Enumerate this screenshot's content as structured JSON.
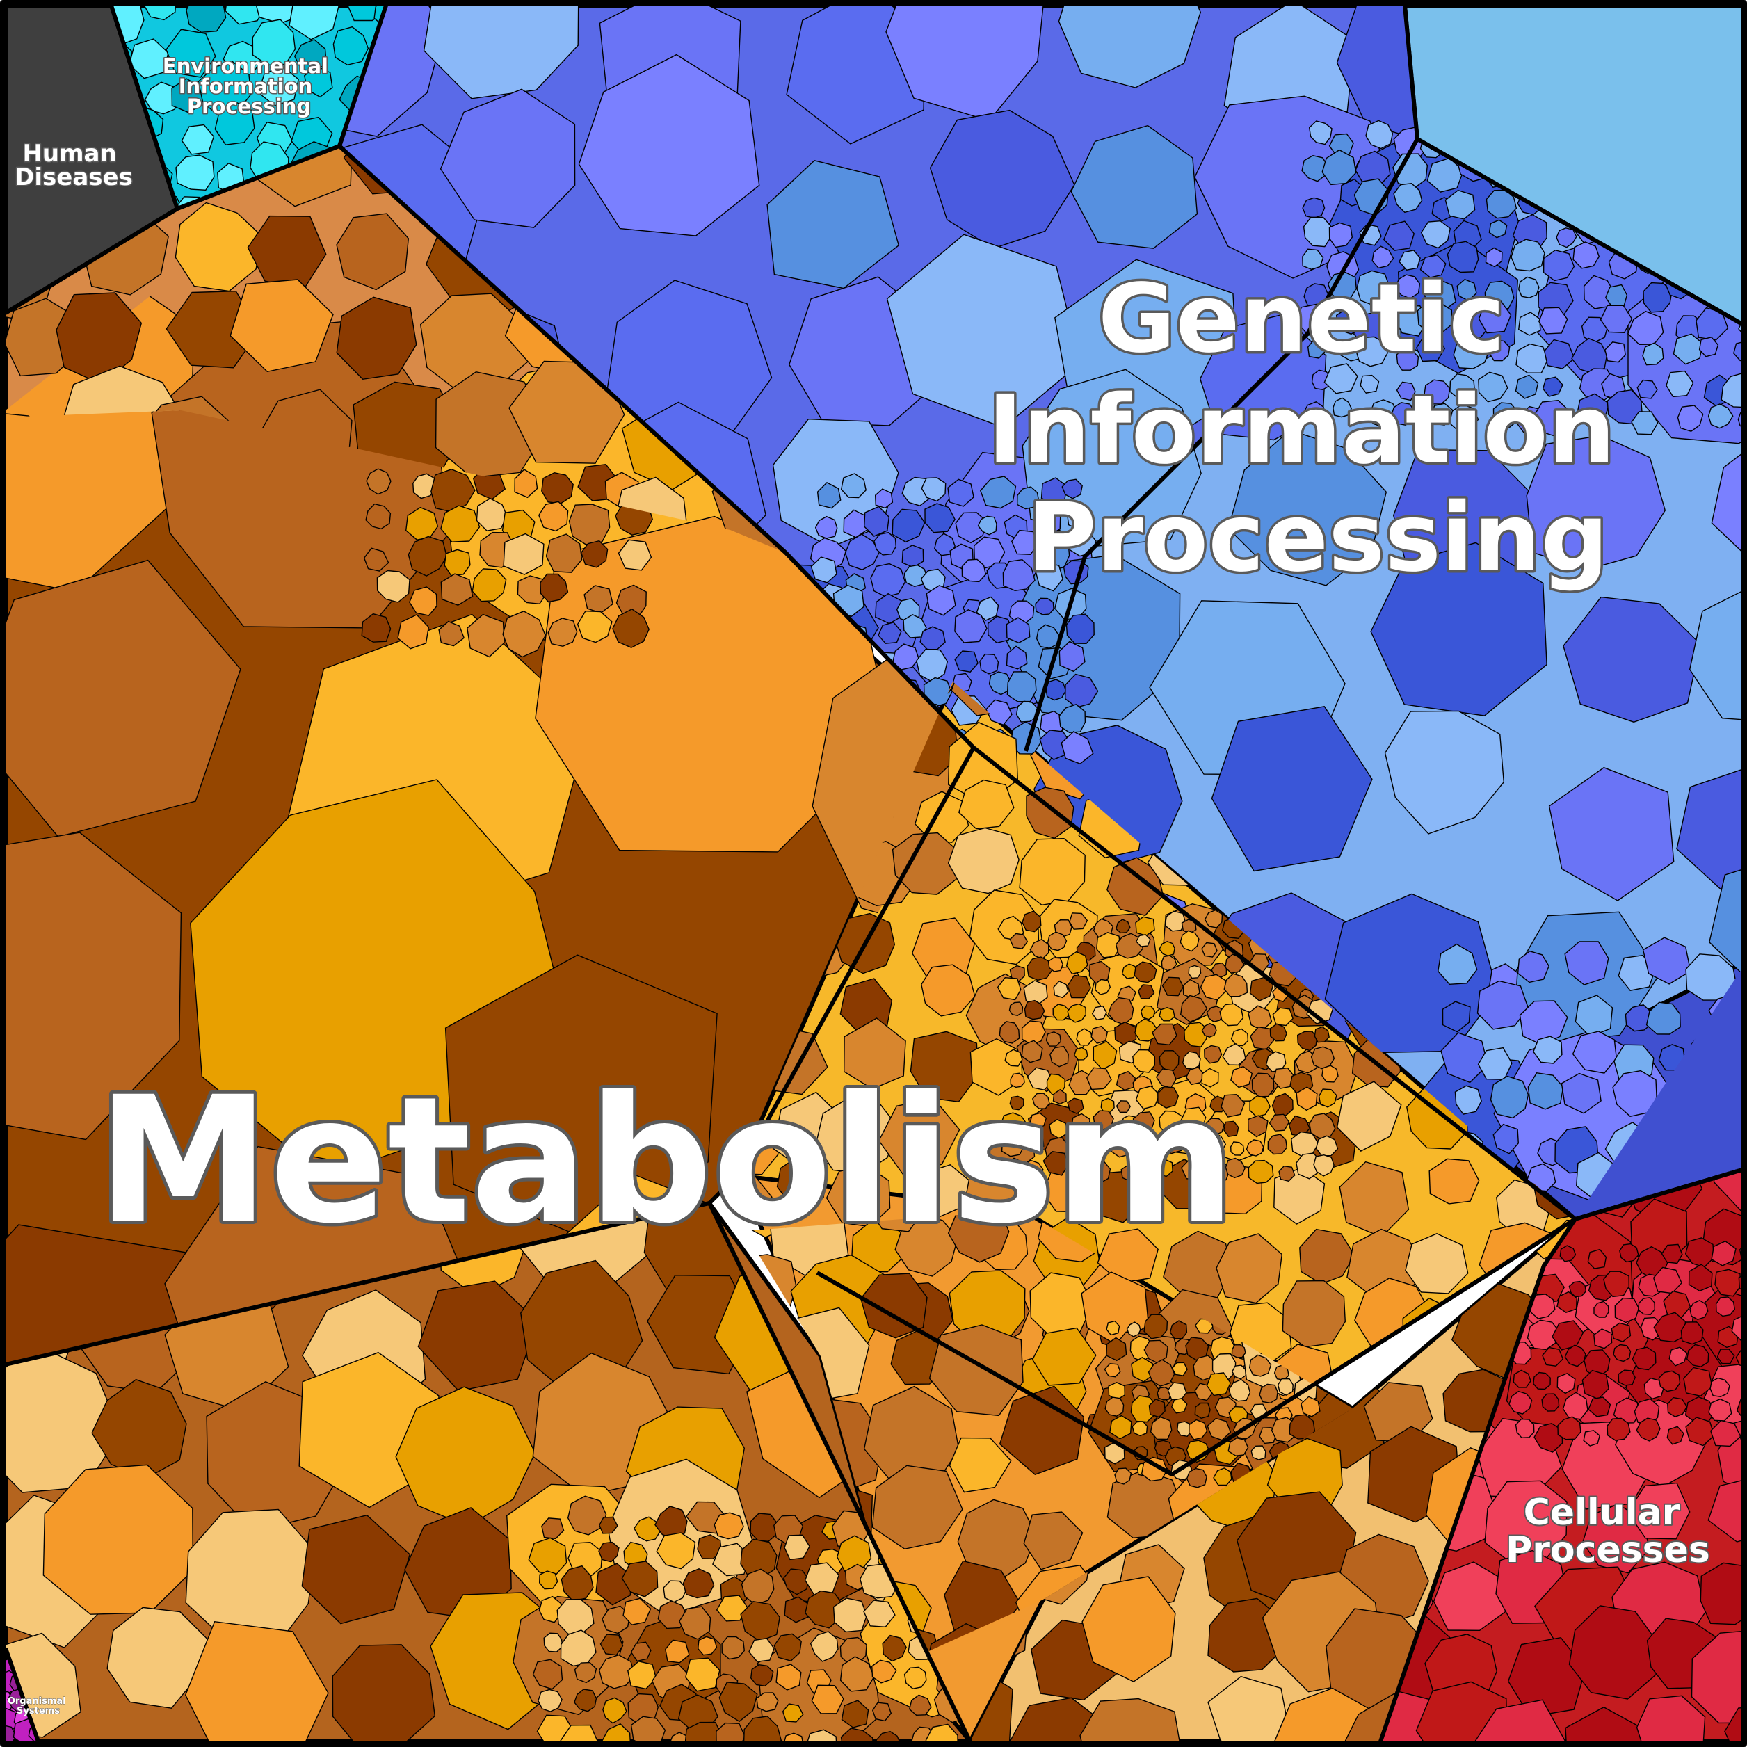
{
  "diagram": {
    "type": "voronoi-treemap",
    "categories": [
      {
        "key": "metabolism",
        "label_lines": [
          "Metabolism"
        ],
        "colors": [
          "#8b3a00",
          "#954600",
          "#b8641e",
          "#c47428",
          "#d8862e",
          "#f59a2a",
          "#fbb62a",
          "#e8a000",
          "#f6c878"
        ]
      },
      {
        "key": "genetic",
        "label_lines": [
          "Genetic",
          "Information",
          "Processing"
        ],
        "colors": [
          "#4a5be0",
          "#6a74f6",
          "#7a80ff",
          "#5a6cf0",
          "#3a56d8",
          "#76aef0",
          "#8ab8f8",
          "#5690e0"
        ]
      },
      {
        "key": "environmental",
        "label_lines": [
          "Environmental",
          "Information",
          "Processing"
        ],
        "colors": [
          "#00c8dc",
          "#30e6f0",
          "#00a8c0",
          "#60f0ff"
        ]
      },
      {
        "key": "human",
        "label_lines": [
          "Human",
          "Diseases"
        ],
        "colors": [
          "#3c3c3c",
          "#454545"
        ]
      },
      {
        "key": "cellular",
        "label_lines": [
          "Cellular",
          "Processes"
        ],
        "colors": [
          "#c01818",
          "#e02a44",
          "#b00c14",
          "#f0405a"
        ]
      },
      {
        "key": "organismal",
        "label_lines": [
          "Organismal",
          "Systems"
        ],
        "colors": [
          "#c020c0",
          "#e040e0",
          "#9a209a"
        ]
      }
    ]
  }
}
